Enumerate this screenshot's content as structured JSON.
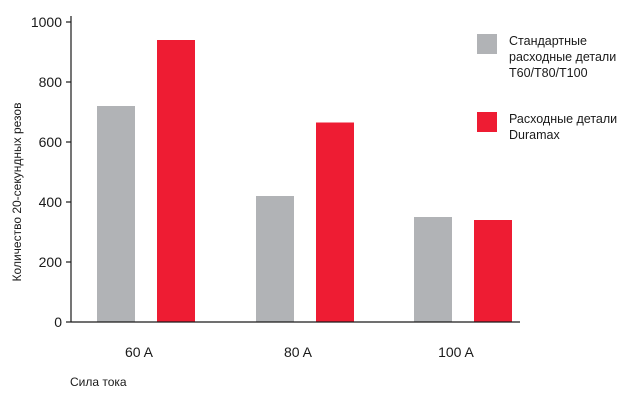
{
  "chart_data": {
    "type": "bar",
    "categories": [
      "60 A",
      "80 A",
      "100 A"
    ],
    "series": [
      {
        "name": "Стандартные расходные детали T60/T80/T100",
        "legend_lines": [
          "Стандартные",
          "расходные детали",
          "T60/T80/T100"
        ],
        "color": "#b1b3b6",
        "values": [
          720,
          420,
          350
        ]
      },
      {
        "name": "Расходные детали Duramax",
        "legend_lines": [
          "Расходные детали",
          "Duramax"
        ],
        "color": "#ee1c33",
        "values": [
          940,
          665,
          340
        ]
      }
    ],
    "xlabel": "Сила тока",
    "ylabel": "Количество 20-секундных резов",
    "ylim": [
      0,
      1000
    ],
    "yticks": [
      0,
      200,
      400,
      600,
      800,
      1000
    ],
    "grid": false,
    "legend_position": "top-right"
  }
}
